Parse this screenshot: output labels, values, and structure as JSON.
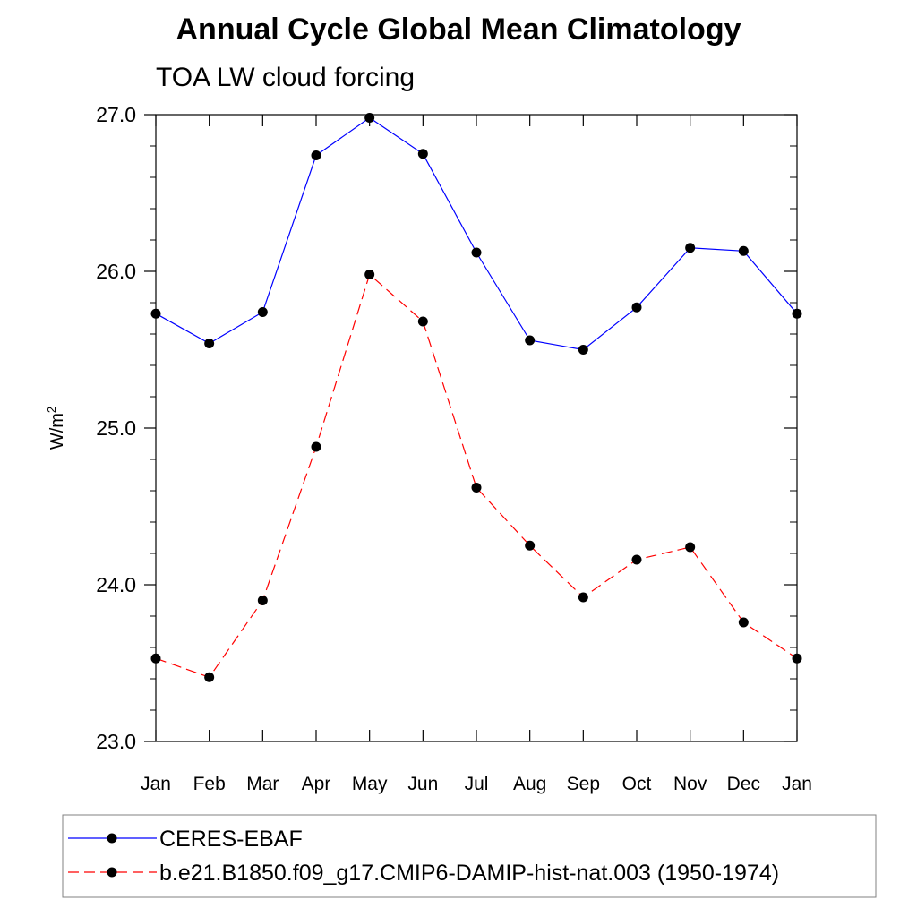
{
  "title": "Annual Cycle Global Mean Climatology",
  "subtitle": "TOA LW cloud forcing",
  "chart_data": {
    "type": "line",
    "title": "Annual Cycle Global Mean Climatology",
    "subtitle": "TOA LW cloud forcing",
    "xlabel": "",
    "ylabel": "W/m",
    "ylabel_superscript": "2",
    "categories": [
      "Jan",
      "Feb",
      "Mar",
      "Apr",
      "May",
      "Jun",
      "Jul",
      "Aug",
      "Sep",
      "Oct",
      "Nov",
      "Dec",
      "Jan"
    ],
    "ylim": [
      23.0,
      27.0
    ],
    "yticks": [
      "23.0",
      "24.0",
      "25.0",
      "26.0",
      "27.0"
    ],
    "grid": false,
    "legend_position": "bottom",
    "series": [
      {
        "name": "CERES-EBAF",
        "color": "#0000ff",
        "dash": "solid",
        "values": [
          25.73,
          25.54,
          25.74,
          26.74,
          26.98,
          26.75,
          26.12,
          25.56,
          25.5,
          25.77,
          26.15,
          26.13,
          25.73
        ]
      },
      {
        "name": "b.e21.B1850.f09_g17.CMIP6-DAMIP-hist-nat.003 (1950-1974)",
        "color": "#ff0000",
        "dash": "dashed",
        "values": [
          23.53,
          23.41,
          23.9,
          24.88,
          25.98,
          25.68,
          24.62,
          24.25,
          23.92,
          24.16,
          24.24,
          23.76,
          23.53
        ]
      }
    ]
  }
}
